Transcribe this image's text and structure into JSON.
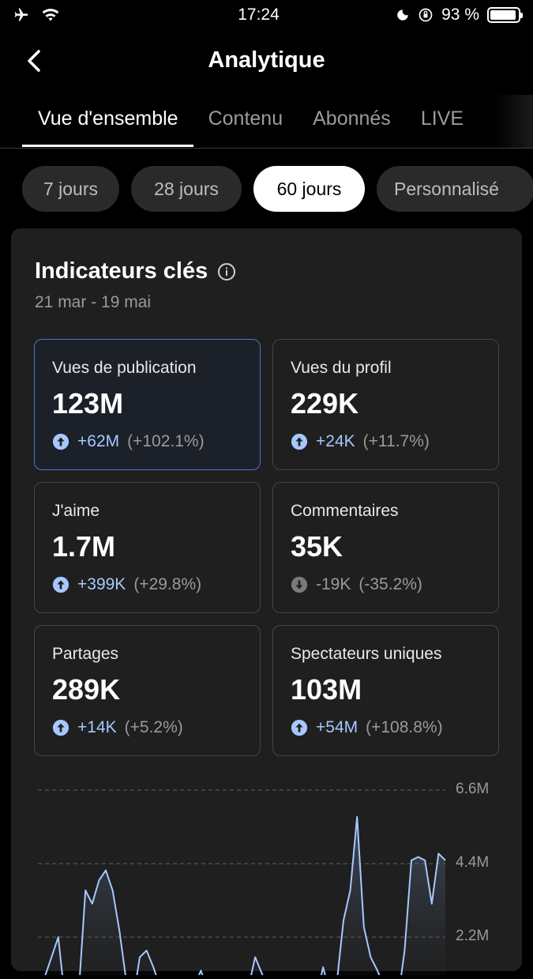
{
  "status": {
    "time": "17:24",
    "battery": "93 %"
  },
  "header": {
    "title": "Analytique"
  },
  "tabs": [
    {
      "label": "Vue d'ensemble"
    },
    {
      "label": "Contenu"
    },
    {
      "label": "Abonnés"
    },
    {
      "label": "LIVE"
    }
  ],
  "ranges": [
    {
      "label": "7 jours"
    },
    {
      "label": "28 jours"
    },
    {
      "label": "60 jours"
    },
    {
      "label": "Personnalisé"
    }
  ],
  "card": {
    "title": "Indicateurs clés",
    "date_range": "21 mar - 19 mai"
  },
  "metrics": [
    {
      "label": "Vues de publication",
      "value": "123M",
      "delta": "+62M",
      "pct": "(+102.1%)",
      "direction": "up"
    },
    {
      "label": "Vues du profil",
      "value": "229K",
      "delta": "+24K",
      "pct": "(+11.7%)",
      "direction": "up"
    },
    {
      "label": "J'aime",
      "value": "1.7M",
      "delta": "+399K",
      "pct": "(+29.8%)",
      "direction": "up"
    },
    {
      "label": "Commentaires",
      "value": "35K",
      "delta": "-19K",
      "pct": "(-35.2%)",
      "direction": "down"
    },
    {
      "label": "Partages",
      "value": "289K",
      "delta": "+14K",
      "pct": "(+5.2%)",
      "direction": "up"
    },
    {
      "label": "Spectateurs uniques",
      "value": "103M",
      "delta": "+54M",
      "pct": "(+108.8%)",
      "direction": "up"
    }
  ],
  "chart_data": {
    "type": "area",
    "title": "",
    "xlabel": "",
    "ylabel": "",
    "yticks": [
      "6.6M",
      "4.4M",
      "2.2M"
    ],
    "ylim": [
      0,
      6.6
    ],
    "y_unit": "M",
    "grid": true,
    "series": [
      {
        "values": [
          0.8,
          1.0,
          1.6,
          2.2,
          0.3,
          0.4,
          0.5,
          3.6,
          3.2,
          3.9,
          4.2,
          3.6,
          2.4,
          0.9,
          0.3,
          1.6,
          1.8,
          1.3,
          0.7,
          0.5,
          0.4,
          0.6,
          0.3,
          0.7,
          1.2,
          0.6,
          0.4,
          0.5,
          0.8,
          0.4,
          0.3,
          0.7,
          1.6,
          1.1,
          0.5,
          0.3,
          1.0,
          0.6,
          0.4,
          0.6,
          0.3,
          0.4,
          1.3,
          0.5,
          0.8,
          2.7,
          3.6,
          5.8,
          2.5,
          1.6,
          1.2,
          0.7,
          0.4,
          0.3,
          1.8,
          4.5,
          4.6,
          4.5,
          3.2,
          4.7,
          4.5
        ]
      }
    ],
    "colors": {
      "line": "#a6c8ff",
      "grid": "#555555"
    }
  }
}
